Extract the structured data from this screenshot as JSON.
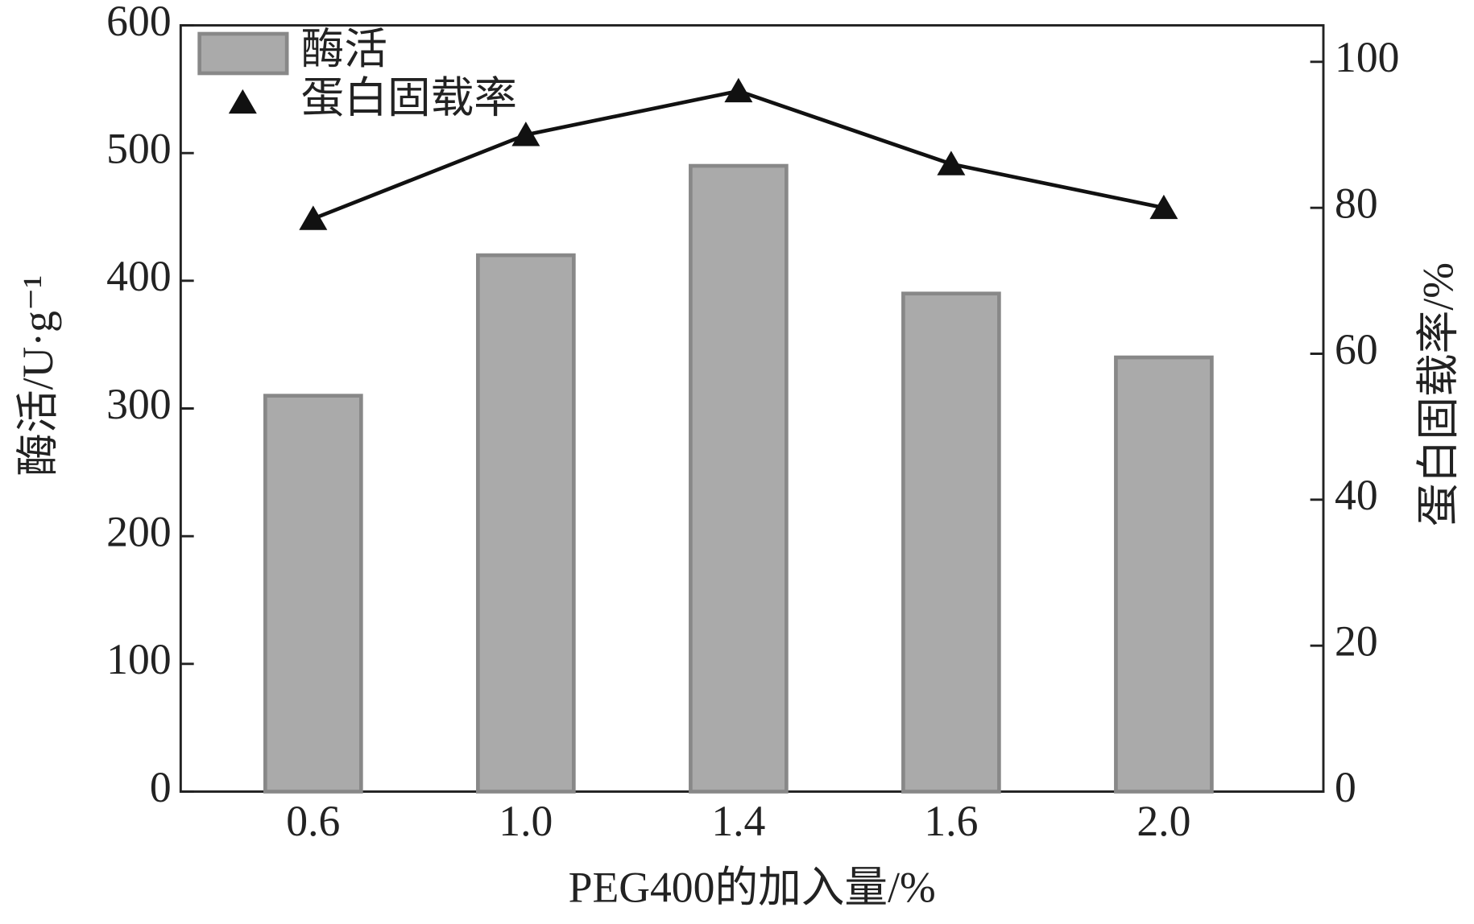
{
  "chart_data": {
    "type": "bar",
    "categories": [
      "0.6",
      "1.0",
      "1.4",
      "1.6",
      "2.0"
    ],
    "x_label": "PEG400的加入量/%",
    "y_label": "酶活/U·g⁻¹",
    "y2_label": "蛋白固载率/%",
    "ylim": [
      0,
      600
    ],
    "yticks": [
      0,
      100,
      200,
      300,
      400,
      500,
      600
    ],
    "y2lim": [
      0,
      105
    ],
    "y2ticks": [
      0,
      20,
      40,
      60,
      80,
      100
    ],
    "legend": "upper left",
    "series": [
      {
        "name": "酶活",
        "type": "bar",
        "color": "#aaaaaa",
        "values": [
          310,
          420,
          490,
          390,
          340
        ]
      },
      {
        "name": "蛋白固载率",
        "type": "line",
        "axis": "y2",
        "color": "#111111",
        "values": [
          78.5,
          90,
          96,
          86,
          80
        ]
      }
    ]
  }
}
